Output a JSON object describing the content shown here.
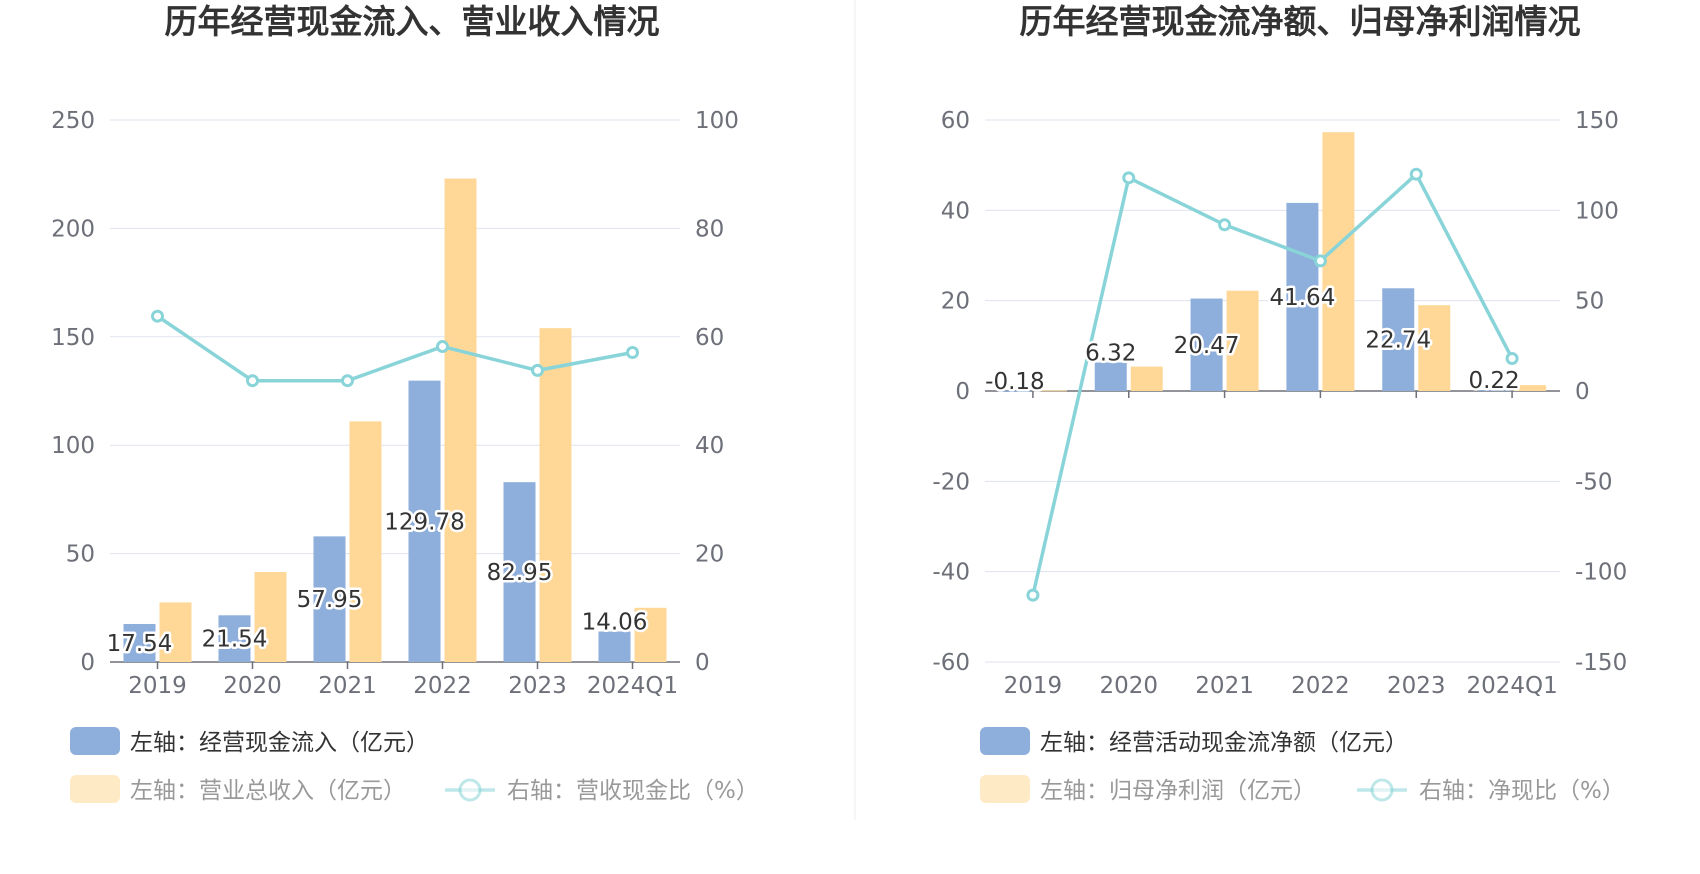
{
  "colors": {
    "bar_primary": "#8eaedc",
    "bar_secondary": "#ffd898",
    "line": "#88d4d8",
    "grid": "#dfe3ee",
    "axis": "#6e7079",
    "divider": "#eeeeee"
  },
  "chart_data": [
    {
      "type": "bar",
      "title": "历年经营现金流入、营业收入情况",
      "categories": [
        "2019",
        "2020",
        "2021",
        "2022",
        "2023",
        "2024Q1"
      ],
      "left_axis": {
        "ylim": [
          0,
          250
        ],
        "ticks": [
          "0",
          "50",
          "100",
          "150",
          "200",
          "250"
        ]
      },
      "right_axis": {
        "ylim": [
          0,
          100
        ],
        "ticks": [
          "0",
          "20",
          "40",
          "60",
          "80",
          "100"
        ]
      },
      "grid": true,
      "legend_position": "bottom",
      "series": [
        {
          "name": "左轴：经营现金流入（亿元）",
          "type": "bar",
          "axis": "left",
          "values": [
            17.54,
            21.54,
            57.95,
            129.78,
            82.95,
            14.06
          ],
          "labels": [
            "17.54",
            "21.54",
            "57.95",
            "129.78",
            "82.95",
            "14.06"
          ]
        },
        {
          "name": "左轴：营业总收入（亿元）",
          "type": "bar",
          "axis": "left",
          "values": [
            27.5,
            41.5,
            111,
            223,
            154,
            25
          ]
        },
        {
          "name": "右轴：营收现金比（%）",
          "type": "line",
          "axis": "right",
          "values": [
            63.8,
            51.9,
            51.9,
            58.2,
            53.8,
            57.1
          ]
        }
      ]
    },
    {
      "type": "bar",
      "title": "历年经营现金流净额、归母净利润情况",
      "categories": [
        "2019",
        "2020",
        "2021",
        "2022",
        "2023",
        "2024Q1"
      ],
      "left_axis": {
        "ylim": [
          -60,
          60
        ],
        "ticks": [
          "-60",
          "-40",
          "-20",
          "0",
          "20",
          "40",
          "60"
        ]
      },
      "right_axis": {
        "ylim": [
          -150,
          150
        ],
        "ticks": [
          "-150",
          "-100",
          "-50",
          "0",
          "50",
          "100",
          "150"
        ]
      },
      "grid": true,
      "legend_position": "bottom",
      "series": [
        {
          "name": "左轴：经营活动现金流净额（亿元）",
          "type": "bar",
          "axis": "left",
          "values": [
            -0.18,
            6.32,
            20.47,
            41.64,
            22.74,
            0.22
          ],
          "labels": [
            "-0.18",
            "6.32",
            "20.47",
            "41.64",
            "22.74",
            "0.22"
          ]
        },
        {
          "name": "左轴：归母净利润（亿元）",
          "type": "bar",
          "axis": "left",
          "values": [
            0.16,
            5.4,
            22.2,
            57.3,
            19,
            1.3
          ]
        },
        {
          "name": "右轴：净现比（%）",
          "type": "line",
          "axis": "right",
          "values": [
            -113,
            118,
            92,
            72,
            120,
            18
          ]
        }
      ]
    }
  ]
}
